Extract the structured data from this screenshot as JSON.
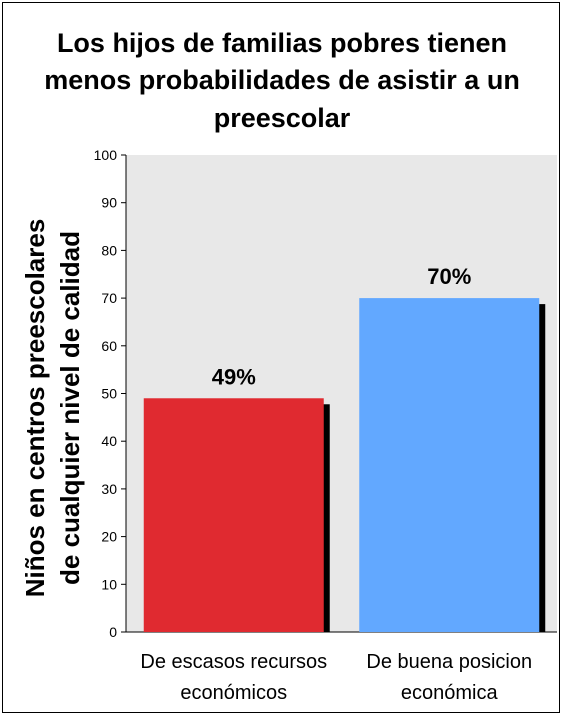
{
  "chart_data": {
    "type": "bar",
    "title_lines": [
      "Los hijos de familias pobres tienen",
      "menos probabilidades de asistir a un",
      "preescolar"
    ],
    "ylabel_lines": [
      "Niños en centros preescolares",
      "de cualquier nivel de calidad"
    ],
    "xlabel": "",
    "categories": [
      [
        "De escasos recursos",
        "económicos"
      ],
      [
        "De buena posicion",
        "económica"
      ]
    ],
    "values": [
      49,
      70
    ],
    "data_labels": [
      "49%",
      "70%"
    ],
    "colors": [
      "#e02a30",
      "#62a8ff"
    ],
    "ylim": [
      0,
      100
    ],
    "yticks": [
      "0",
      "10",
      "20",
      "30",
      "40",
      "50",
      "60",
      "70",
      "80",
      "90",
      "100"
    ],
    "grid": false,
    "plot_background": "#e8e8e8",
    "legend": "none"
  }
}
